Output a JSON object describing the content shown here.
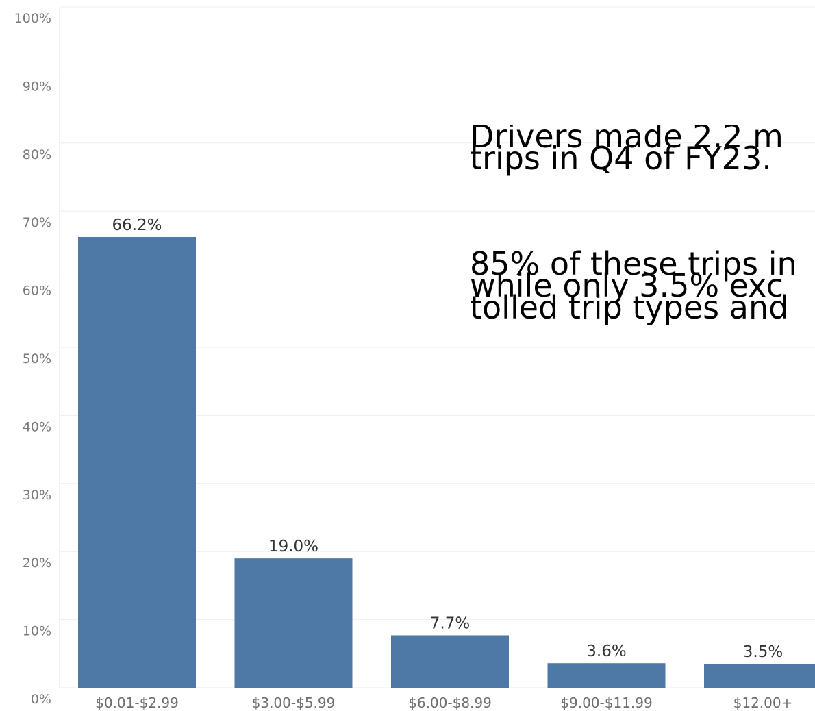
{
  "chart_data": {
    "type": "bar",
    "categories": [
      "$0.01-$2.99",
      "$3.00-$5.99",
      "$6.00-$8.99",
      "$9.00-$11.99",
      "$12.00+"
    ],
    "values": [
      66.2,
      19.0,
      7.7,
      3.6,
      3.5
    ],
    "data_labels": [
      "66.2%",
      "19.0%",
      "7.7%",
      "3.6%",
      "3.5%"
    ],
    "y_ticks": [
      "0%",
      "10%",
      "20%",
      "30%",
      "40%",
      "50%",
      "60%",
      "70%",
      "80%",
      "90%",
      "100%"
    ],
    "ylim": [
      0,
      100
    ],
    "grid": true,
    "bar_color": "#4e79a7",
    "annotation": {
      "lines_group1": [
        "Drivers made 2.2 m",
        "trips in Q4 of FY23."
      ],
      "lines_group2": [
        "85% of these trips in",
        "while only 3.5% exc",
        "tolled trip types and"
      ]
    }
  }
}
